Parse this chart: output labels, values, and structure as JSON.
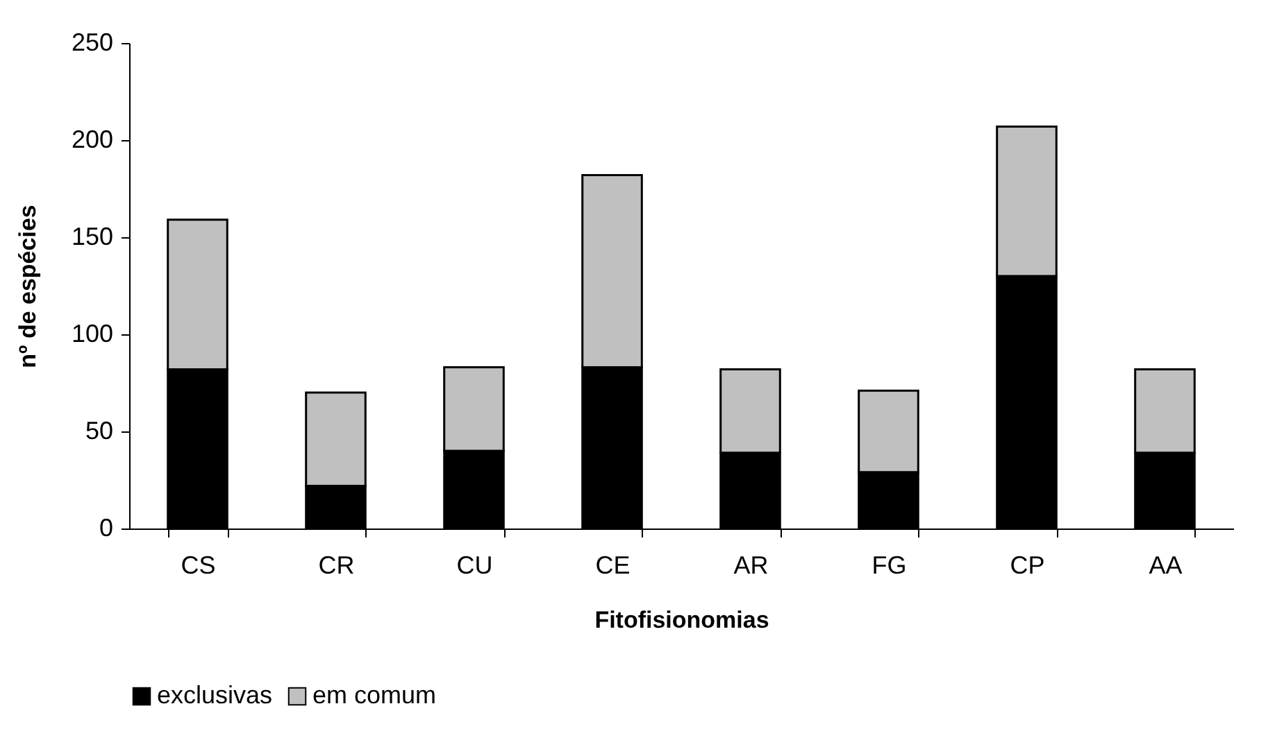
{
  "chart_data": {
    "type": "bar",
    "stacked": true,
    "xlabel": "Fitofisionomias",
    "ylabel": "nº de espécies",
    "categories": [
      "CS",
      "CR",
      "CU",
      "CE",
      "AR",
      "FG",
      "CP",
      "AA"
    ],
    "series": [
      {
        "name": "exclusivas",
        "color": "#000000",
        "values": [
          82,
          22,
          40,
          83,
          39,
          29,
          130,
          39
        ]
      },
      {
        "name": "em comum",
        "color": "#c0c0c0",
        "values": [
          77,
          48,
          43,
          99,
          43,
          42,
          77,
          43
        ]
      }
    ],
    "ylim": [
      0,
      250
    ],
    "yticks": [
      0,
      50,
      100,
      150,
      200,
      250
    ],
    "grid": false,
    "legend": "bottom"
  }
}
